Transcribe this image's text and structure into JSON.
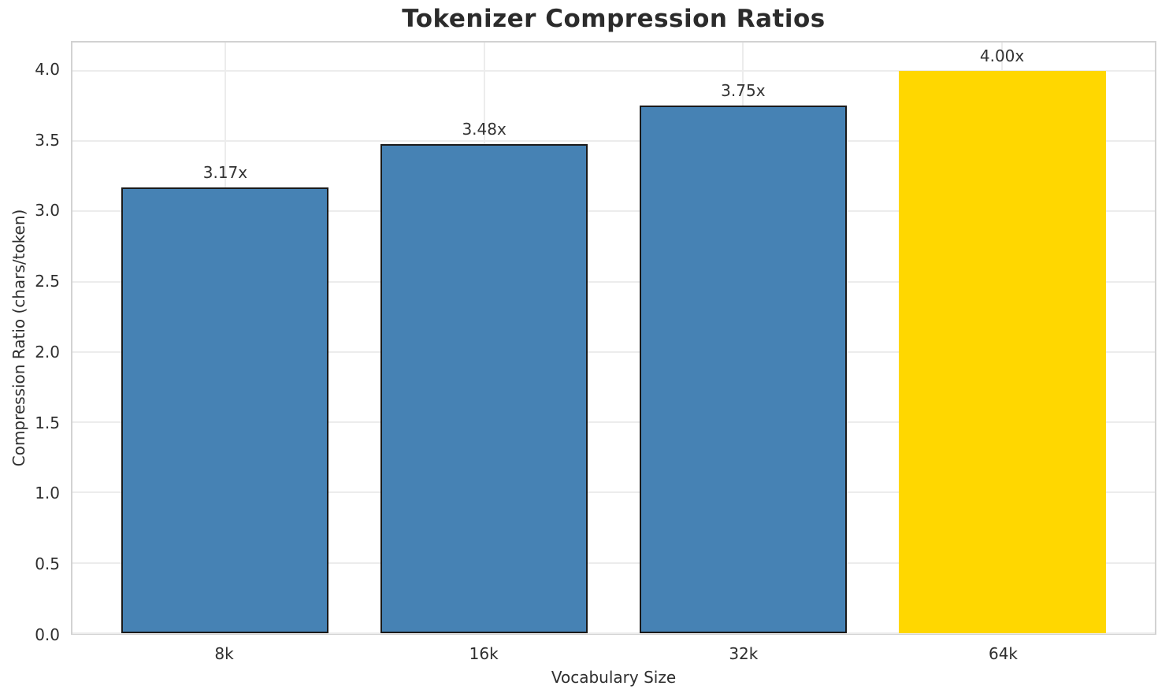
{
  "figure": {
    "background": "#ffffff"
  },
  "chart_data": {
    "type": "bar",
    "title": "Tokenizer Compression Ratios",
    "xlabel": "Vocabulary Size",
    "ylabel": "Compression Ratio (chars/token)",
    "categories": [
      "8k",
      "16k",
      "32k",
      "64k"
    ],
    "values": [
      3.17,
      3.48,
      3.75,
      4.0
    ],
    "value_labels": [
      "3.17x",
      "3.48x",
      "3.75x",
      "4.00x"
    ],
    "bar_colors": [
      "#4682b4",
      "#4682b4",
      "#4682b4",
      "#ffd700"
    ],
    "bar_edge_colors": [
      "#1a1a1a",
      "#1a1a1a",
      "#1a1a1a",
      "none"
    ],
    "ylim": [
      0,
      4.2
    ],
    "yticks": [
      0.0,
      0.5,
      1.0,
      1.5,
      2.0,
      2.5,
      3.0,
      3.5,
      4.0
    ],
    "ytick_labels": [
      "0.0",
      "0.5",
      "1.0",
      "1.5",
      "2.0",
      "2.5",
      "3.0",
      "3.5",
      "4.0"
    ],
    "grid": true,
    "legend": "none"
  },
  "colors": {
    "grid": "#ececec",
    "spine": "#d2d2d2",
    "tick_text": "#2e2e2e",
    "value_text": "#333333",
    "title_text": "#2b2b2b",
    "bar_blue": "#4682b4",
    "bar_gold": "#ffd700"
  }
}
